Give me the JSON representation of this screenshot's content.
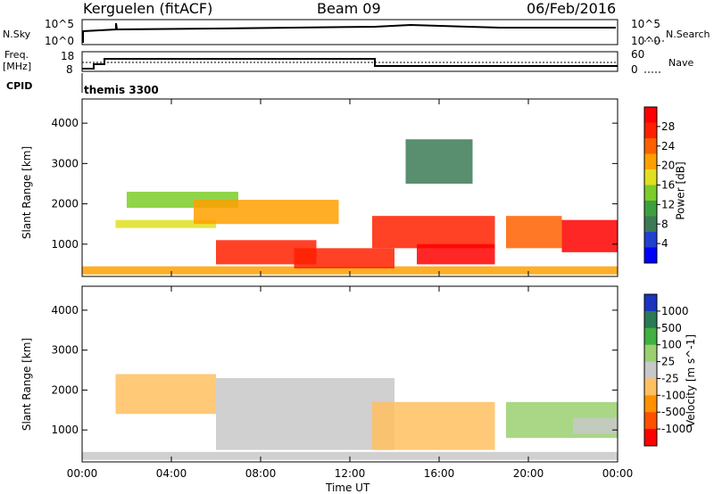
{
  "header": {
    "station": "Kerguelen (fitACF)",
    "beam": "Beam 09",
    "date": "06/Feb/2016"
  },
  "labels": {
    "nsky": "N.Sky",
    "nsearch": "N.Search",
    "freq_line1": "Freq.",
    "freq_line2": "[MHz]",
    "nave": "Nave",
    "cpid": "CPID",
    "cpid_value": "themis 3300",
    "ylabel": "Slant Range [km]",
    "xlabel": "Time UT"
  },
  "top_axes": {
    "nsky_ticks": [
      "10^5",
      "10^0"
    ],
    "nsearch_ticks": [
      "10^5",
      "10^0"
    ],
    "freq_ticks": [
      "18",
      "8"
    ],
    "nave_ticks": [
      "60",
      "0"
    ]
  },
  "colors": {
    "power": [
      "#0000ff",
      "#2040d0",
      "#3c7a55",
      "#3da040",
      "#7ccc2a",
      "#e0e020",
      "#ffa000",
      "#ff6000",
      "#ff2000",
      "#ff0000"
    ],
    "velocity": [
      "#1a34c0",
      "#2a7a55",
      "#40b040",
      "#9ad070",
      "#c8c8c8",
      "#ffc060",
      "#ff9000",
      "#ff5000",
      "#ff0000"
    ]
  },
  "chart_data": [
    {
      "type": "heatmap",
      "quantity": "Power",
      "colorbar_label": "Power [dB]",
      "colorbar_ticks": [
        "28",
        "24",
        "20",
        "16",
        "12",
        "8",
        "4"
      ],
      "zlim": [
        0,
        32
      ],
      "ylabel": "Slant Range [km]",
      "y_ticks": [
        "4000",
        "3000",
        "2000",
        "1000"
      ],
      "ylim": [
        200,
        4600
      ],
      "xlabel": "Time UT",
      "x_ticks": [
        "00:00",
        "04:00",
        "08:00",
        "12:00",
        "16:00",
        "20:00",
        "00:00"
      ],
      "xlim": [
        0,
        24
      ],
      "features": [
        {
          "t": [
            0.0,
            24.0
          ],
          "r": [
            250,
            450
          ],
          "value": 22
        },
        {
          "t": [
            1.5,
            6.0
          ],
          "r": [
            1400,
            1600
          ],
          "value": 16
        },
        {
          "t": [
            2.0,
            7.0
          ],
          "r": [
            1900,
            2300
          ],
          "value": 14
        },
        {
          "t": [
            5.0,
            11.5
          ],
          "r": [
            1500,
            2100
          ],
          "value": 20
        },
        {
          "t": [
            6.0,
            10.5
          ],
          "r": [
            500,
            1100
          ],
          "value": 26
        },
        {
          "t": [
            9.5,
            14.0
          ],
          "r": [
            400,
            900
          ],
          "value": 28
        },
        {
          "t": [
            13.0,
            18.5
          ],
          "r": [
            900,
            1700
          ],
          "value": 26
        },
        {
          "t": [
            15.0,
            18.5
          ],
          "r": [
            500,
            1000
          ],
          "value": 30
        },
        {
          "t": [
            19.0,
            21.5
          ],
          "r": [
            900,
            1700
          ],
          "value": 24
        },
        {
          "t": [
            21.5,
            24.0
          ],
          "r": [
            800,
            1600
          ],
          "value": 32
        },
        {
          "t": [
            14.5,
            17.5
          ],
          "r": [
            2500,
            3600
          ],
          "value": 8
        }
      ]
    },
    {
      "type": "heatmap",
      "quantity": "Velocity",
      "colorbar_label": "Velocity [m s^-1]",
      "colorbar_ticks": [
        "1000",
        "500",
        "100",
        "25",
        "-25",
        "-100",
        "-500",
        "-1000"
      ],
      "zlim": [
        -1000,
        1000
      ],
      "ylabel": "Slant Range [km]",
      "y_ticks": [
        "4000",
        "3000",
        "2000",
        "1000"
      ],
      "ylim": [
        200,
        4600
      ],
      "xlabel": "Time UT",
      "x_ticks": [
        "00:00",
        "04:00",
        "08:00",
        "12:00",
        "16:00",
        "20:00",
        "00:00"
      ],
      "xlim": [
        0,
        24
      ],
      "features": [
        {
          "t": [
            0.0,
            24.0
          ],
          "r": [
            250,
            450
          ],
          "value": 0
        },
        {
          "t": [
            1.5,
            6.0
          ],
          "r": [
            1400,
            2400
          ],
          "value": -200
        },
        {
          "t": [
            6.0,
            14.0
          ],
          "r": [
            500,
            2300
          ],
          "value": 0
        },
        {
          "t": [
            13.0,
            18.5
          ],
          "r": [
            500,
            1700
          ],
          "value": -120
        },
        {
          "t": [
            19.0,
            24.0
          ],
          "r": [
            800,
            1700
          ],
          "value": 300
        },
        {
          "t": [
            22.0,
            24.0
          ],
          "r": [
            900,
            1300
          ],
          "value": 80
        }
      ]
    }
  ]
}
